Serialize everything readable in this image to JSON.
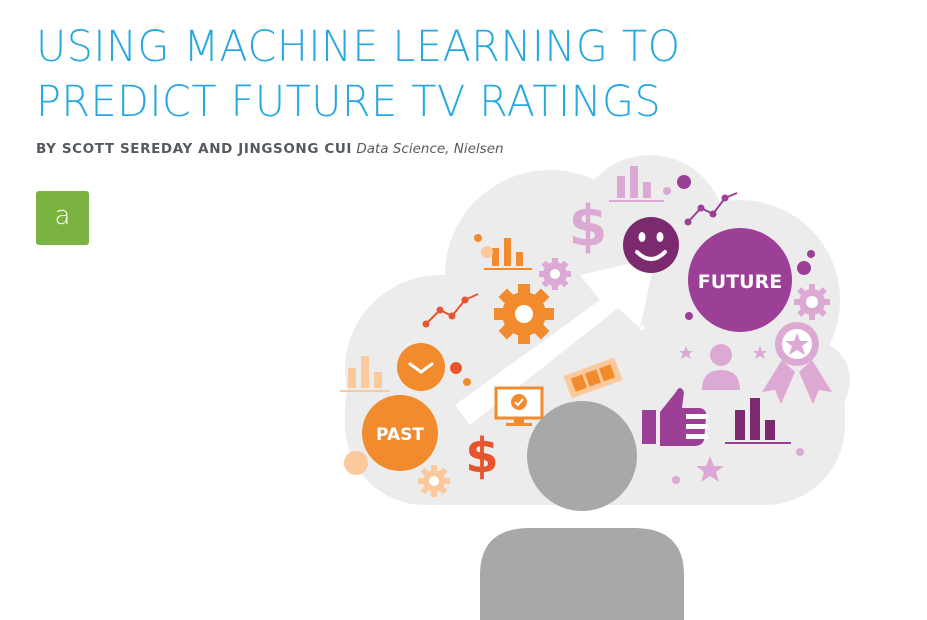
{
  "header": {
    "title_line1": "USING MACHINE LEARNING TO",
    "title_line2": "PREDICT FUTURE TV RATINGS",
    "byline_authors": "BY SCOTT SEREDAY AND JINGSONG CUI",
    "byline_affiliation": "Data Science, Nielsen"
  },
  "logo": {
    "letter": "a",
    "color": "#7ab340"
  },
  "illustration": {
    "past_label": "PAST",
    "future_label": "FUTURE",
    "dollar_glyph": "$",
    "icons": [
      "cloud-icon",
      "arrow-icon",
      "person-icon",
      "gear-icon",
      "bar-chart-icon",
      "line-chart-icon",
      "clock-icon",
      "monitor-icon",
      "film-strip-icon",
      "thumbs-up-icon",
      "smiley-icon",
      "award-ribbon-icon",
      "star-icon",
      "dollar-icon"
    ],
    "colors": {
      "orange": "#f28b2d",
      "purple": "#9c3f97",
      "light_purple": "#dca9d4",
      "gray": "#a7a8aa",
      "cloud": "#ececec",
      "title_blue": "#29a8e0"
    }
  }
}
